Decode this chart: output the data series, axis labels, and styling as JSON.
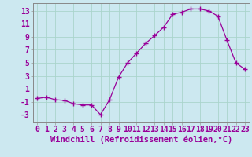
{
  "x": [
    0,
    1,
    2,
    3,
    4,
    5,
    6,
    7,
    8,
    9,
    10,
    11,
    12,
    13,
    14,
    15,
    16,
    17,
    18,
    19,
    20,
    21,
    22,
    23
  ],
  "y": [
    -0.5,
    -0.3,
    -0.7,
    -0.8,
    -1.3,
    -1.5,
    -1.5,
    -3.0,
    -0.7,
    2.8,
    5.0,
    6.5,
    8.0,
    9.2,
    10.5,
    12.5,
    12.8,
    13.3,
    13.3,
    13.0,
    12.2,
    8.5,
    5.0,
    4.0
  ],
  "line_color": "#990099",
  "marker": "+",
  "marker_size": 4,
  "marker_linewidth": 1.0,
  "background_color": "#cce8f0",
  "grid_color": "#aad4cc",
  "xlabel": "Windchill (Refroidissement éolien,°C)",
  "xlabel_fontsize": 7.5,
  "tick_fontsize": 7,
  "xlim": [
    -0.5,
    23.5
  ],
  "ylim": [
    -4.2,
    14.2
  ],
  "yticks": [
    -3,
    -1,
    1,
    3,
    5,
    7,
    9,
    11,
    13
  ],
  "xtick_labels": [
    "0",
    "1",
    "2",
    "3",
    "4",
    "5",
    "6",
    "7",
    "8",
    "9",
    "10",
    "11",
    "12",
    "13",
    "14",
    "15",
    "16",
    "17",
    "18",
    "19",
    "20",
    "21",
    "22",
    "23"
  ]
}
